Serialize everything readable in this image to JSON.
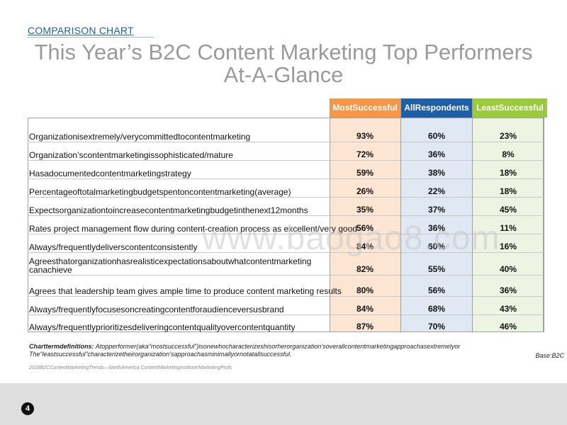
{
  "section_label": "COMPARISON CHART",
  "title_line1": "This Year’s B2C Content Marketing Top Performers",
  "title_line2": "At-A-Glance",
  "watermark": "www.baogao8.com",
  "page_number": "4",
  "colors": {
    "most": "#f79646",
    "all": "#1f5fa8",
    "least": "#9bcb3b"
  },
  "chart_data": {
    "type": "table",
    "columns": [
      "MostSuccessful",
      "AllRespondents",
      "LeastSuccessful"
    ],
    "rows": [
      {
        "label": "Organizationisextremely/verycommittedtocontentmarketing",
        "values": [
          "93%",
          "60%",
          "23%"
        ]
      },
      {
        "label": "Organization’scontentmarketingissophisticated/mature",
        "values": [
          "72%",
          "36%",
          "8%"
        ]
      },
      {
        "label": "Hasadocumentedcontentmarketingstrategy",
        "values": [
          "59%",
          "38%",
          "18%"
        ]
      },
      {
        "label": "Percentageoftotalmarketingbudgetspentoncontentmarketing(average)",
        "values": [
          "26%",
          "22%",
          "18%"
        ]
      },
      {
        "label": "Expectsorganizationtoincreasecontentmarketingbudgetinthenext12months",
        "values": [
          "35%",
          "37%",
          "45%"
        ]
      },
      {
        "label": "Rates project management flow during content-creation process as excellent/very good",
        "values": [
          "56%",
          "36%",
          "11%"
        ]
      },
      {
        "label": "Always/frequentlydeliverscontentconsistently",
        "values": [
          "84%",
          "60%",
          "16%"
        ]
      },
      {
        "label": "Agreesthatorganizationhasrealisticexpectationsaboutwhatcontentmarketing canachieve",
        "values": [
          "82%",
          "55%",
          "40%"
        ]
      },
      {
        "label": "Agrees that leadership team gives ample time to produce content marketing results",
        "values": [
          "80%",
          "56%",
          "36%"
        ]
      },
      {
        "label": "Always/frequentlyfocusesoncreatingcontentforaudienceversusbrand",
        "values": [
          "84%",
          "68%",
          "43%"
        ]
      },
      {
        "label": "Always/frequentlyprioritizesdeliveringcontentqualityovercontentquantity",
        "values": [
          "87%",
          "70%",
          "46%"
        ]
      }
    ]
  },
  "definitions": {
    "heading": "Charttermdefinitions:",
    "line1": "Atopperformer(aka“mostsuccessful”)isonewhocharacterizeshisorherorganization’soverallcontentmarketingapproachasextremelyor",
    "line2": "The“leastsuccessful”characterizetheirorganization’sapproachasminimallyornotatallsuccessful.",
    "base": "Base:B2C"
  },
  "source": "2018B2CContentMarketingTrends—NorthAmerica:ContentMarketingInstitute/MarketingProfs"
}
